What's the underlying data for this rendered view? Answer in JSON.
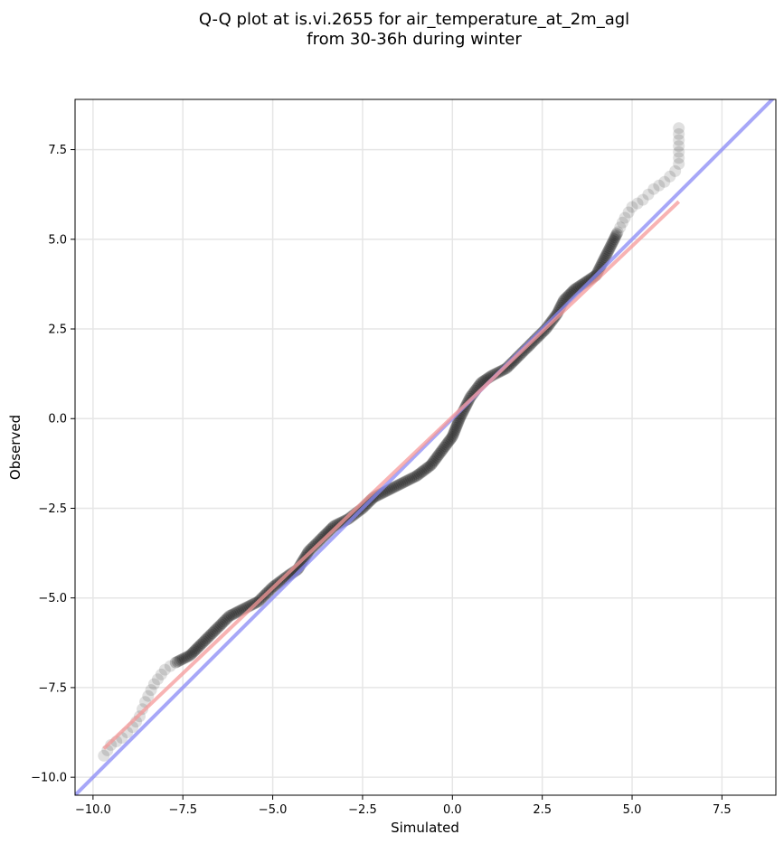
{
  "chart_data": {
    "type": "scatter",
    "title": "Q-Q plot at is.vi.2655 for air_temperature_at_2m_agl",
    "subtitle": "from 30-36h during winter",
    "xlabel": "Simulated",
    "ylabel": "Observed",
    "xlim": [
      -10.5,
      9.0
    ],
    "ylim": [
      -10.5,
      8.9
    ],
    "xticks": [
      -10.0,
      -7.5,
      -5.0,
      -2.5,
      0.0,
      2.5,
      5.0,
      7.5
    ],
    "yticks": [
      -10.0,
      -7.5,
      -5.0,
      -2.5,
      0.0,
      2.5,
      5.0,
      7.5
    ],
    "xtick_labels": [
      "−10.0",
      "−7.5",
      "−5.0",
      "−2.5",
      "0.0",
      "2.5",
      "5.0",
      "7.5"
    ],
    "ytick_labels": [
      "−10.0",
      "−7.5",
      "−5.0",
      "−2.5",
      "0.0",
      "2.5",
      "5.0",
      "7.5"
    ],
    "grid": true,
    "quantile_curve": [
      [
        -9.7,
        -9.4
      ],
      [
        -9.5,
        -9.1
      ],
      [
        -9.2,
        -8.9
      ],
      [
        -8.9,
        -8.6
      ],
      [
        -8.7,
        -8.3
      ],
      [
        -8.55,
        -7.9
      ],
      [
        -8.3,
        -7.4
      ],
      [
        -8.0,
        -7.0
      ],
      [
        -7.7,
        -6.8
      ],
      [
        -7.3,
        -6.6
      ],
      [
        -7.0,
        -6.3
      ],
      [
        -6.6,
        -5.9
      ],
      [
        -6.2,
        -5.5
      ],
      [
        -5.8,
        -5.3
      ],
      [
        -5.4,
        -5.1
      ],
      [
        -5.0,
        -4.7
      ],
      [
        -4.6,
        -4.4
      ],
      [
        -4.3,
        -4.2
      ],
      [
        -4.0,
        -3.7
      ],
      [
        -3.6,
        -3.3
      ],
      [
        -3.3,
        -3.0
      ],
      [
        -2.9,
        -2.8
      ],
      [
        -2.5,
        -2.5
      ],
      [
        -2.2,
        -2.2
      ],
      [
        -1.8,
        -2.0
      ],
      [
        -1.4,
        -1.8
      ],
      [
        -1.0,
        -1.6
      ],
      [
        -0.6,
        -1.3
      ],
      [
        -0.3,
        -0.9
      ],
      [
        0.0,
        -0.5
      ],
      [
        0.2,
        0.0
      ],
      [
        0.5,
        0.6
      ],
      [
        0.8,
        1.0
      ],
      [
        1.1,
        1.2
      ],
      [
        1.5,
        1.4
      ],
      [
        1.8,
        1.7
      ],
      [
        2.2,
        2.1
      ],
      [
        2.6,
        2.5
      ],
      [
        2.9,
        2.9
      ],
      [
        3.1,
        3.3
      ],
      [
        3.4,
        3.6
      ],
      [
        3.7,
        3.8
      ],
      [
        4.0,
        4.0
      ],
      [
        4.2,
        4.4
      ],
      [
        4.4,
        4.8
      ],
      [
        4.6,
        5.2
      ],
      [
        4.8,
        5.6
      ],
      [
        5.0,
        5.9
      ],
      [
        5.3,
        6.1
      ],
      [
        5.6,
        6.4
      ],
      [
        5.9,
        6.6
      ],
      [
        6.2,
        6.9
      ],
      [
        6.3,
        7.1
      ],
      [
        6.3,
        8.1
      ]
    ],
    "reference_lines": [
      {
        "color": "#8a8af5",
        "points": [
          [
            -10.5,
            -10.5
          ],
          [
            9.0,
            9.0
          ]
        ]
      },
      {
        "color": "#f59a9a",
        "points": [
          [
            -9.7,
            -9.2
          ],
          [
            6.3,
            6.05
          ]
        ]
      }
    ],
    "colors": {
      "points": "#000000",
      "identity_line": "#8a8af5",
      "fit_line": "#f59a9a",
      "grid": "#e6e6e6"
    }
  }
}
